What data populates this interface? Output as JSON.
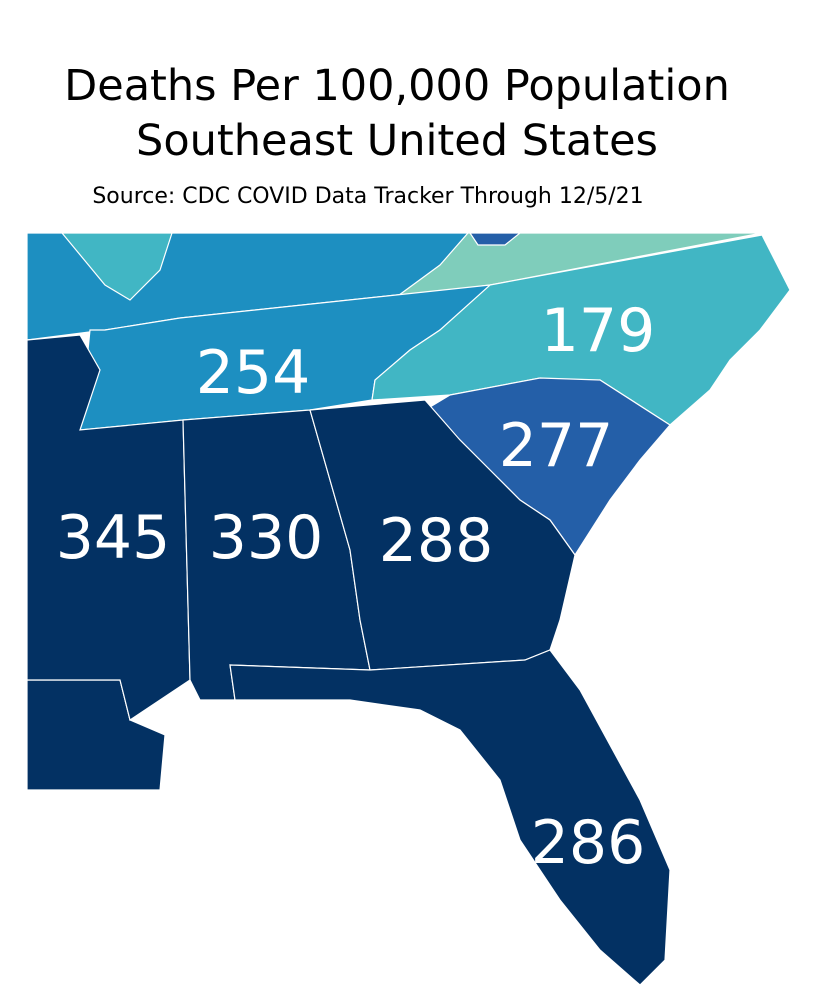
{
  "title": [
    "Deaths Per 100,000 Population",
    "Southeast United States"
  ],
  "source": "Source: CDC COVID Data Tracker Through 12/5/21",
  "regions": [
    {
      "value": 254,
      "color": "#1d8fc1"
    },
    {
      "value": 179,
      "color": "#41b6c4"
    },
    {
      "value": 277,
      "color": "#245fa8"
    },
    {
      "value": 345,
      "color": "#033163"
    },
    {
      "value": 330,
      "color": "#033163"
    },
    {
      "value": 288,
      "color": "#033163"
    },
    {
      "value": 286,
      "color": "#033163"
    }
  ]
}
